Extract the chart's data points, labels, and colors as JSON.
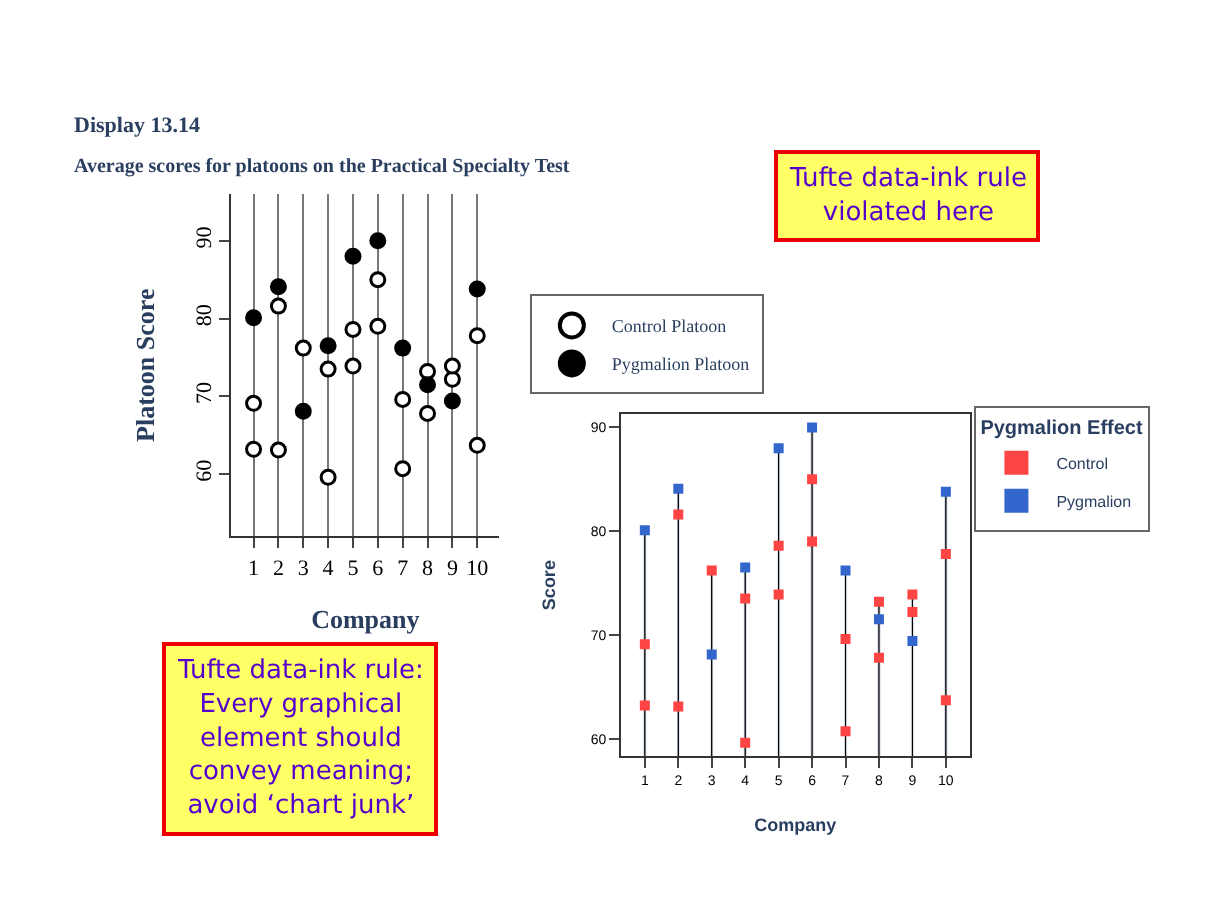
{
  "chart_data": [
    {
      "type": "scatter",
      "title": "Display 13.14",
      "subtitle": "Average scores for platoons on the Practical Specialty Test",
      "xlabel": "Company",
      "ylabel": "Platoon Score",
      "categories": [
        "1",
        "2",
        "3",
        "4",
        "5",
        "6",
        "7",
        "8",
        "9",
        "10"
      ],
      "ylim": [
        52,
        96
      ],
      "yticks": [
        60,
        70,
        80,
        90
      ],
      "grid": "x",
      "legend": "right",
      "marker": "circle",
      "series": [
        {
          "name": "Control Platoon",
          "color": "#ffffff",
          "x": [
            "1",
            "1",
            "2",
            "2",
            "3",
            "4",
            "4",
            "5",
            "5",
            "6",
            "6",
            "7",
            "7",
            "8",
            "8",
            "9",
            "9",
            "10",
            "10"
          ],
          "values": [
            63.2,
            69.1,
            63.1,
            81.6,
            76.2,
            59.6,
            73.5,
            73.9,
            78.6,
            85,
            79,
            60.7,
            69.6,
            67.8,
            73.2,
            72.2,
            73.9,
            63.7,
            77.8
          ]
        },
        {
          "name": "Pygmalion Platoon",
          "color": "#000000",
          "x": [
            "1",
            "2",
            "3",
            "4",
            "5",
            "6",
            "7",
            "8",
            "9",
            "10"
          ],
          "values": [
            80.1,
            84.1,
            68.1,
            76.5,
            88,
            90,
            76.2,
            71.5,
            69.4,
            83.8
          ]
        }
      ],
      "annotations": [
        "Tufte data-ink rule:\nEvery graphical\nelement should\nconvey meaning;\navoid ‘chart junk’"
      ]
    },
    {
      "type": "scatter",
      "xlabel": "Company",
      "ylabel": "Score",
      "legend_title": "Pygmalion Effect",
      "categories": [
        "1",
        "2",
        "3",
        "4",
        "5",
        "6",
        "7",
        "8",
        "9",
        "10"
      ],
      "ylim": [
        58.3,
        91.3
      ],
      "yticks": [
        60,
        70,
        80,
        90
      ],
      "legend": "right",
      "marker": "square",
      "series": [
        {
          "type": "bar",
          "color": "#000000",
          "values": [
            80.1,
            84.1,
            76.2,
            76.5,
            88,
            90,
            76.2,
            73.2,
            73.9,
            83.8
          ]
        },
        {
          "name": "Control",
          "color": "#ff4444",
          "x": [
            "1",
            "1",
            "2",
            "2",
            "3",
            "4",
            "4",
            "5",
            "5",
            "6",
            "6",
            "7",
            "7",
            "8",
            "8",
            "9",
            "9",
            "10",
            "10"
          ],
          "values": [
            63.2,
            69.1,
            63.1,
            81.6,
            76.2,
            59.6,
            73.5,
            73.9,
            78.6,
            85,
            79,
            60.7,
            69.6,
            67.8,
            73.2,
            72.2,
            73.9,
            63.7,
            77.8
          ]
        },
        {
          "name": "Pygmalion",
          "color": "#3366cc",
          "x": [
            "1",
            "2",
            "3",
            "4",
            "5",
            "6",
            "7",
            "8",
            "9",
            "10"
          ],
          "values": [
            80.1,
            84.1,
            68.1,
            76.5,
            88,
            90,
            76.2,
            71.5,
            69.4,
            83.8
          ]
        }
      ],
      "annotations": [
        "Tufte data-ink rule\nviolated here"
      ]
    }
  ]
}
